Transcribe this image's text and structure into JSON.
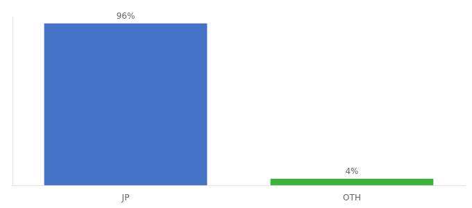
{
  "chart_data": {
    "type": "bar",
    "categories": [
      "JP",
      "OTH"
    ],
    "values": [
      96,
      4
    ],
    "value_labels": [
      "96%",
      "4%"
    ],
    "colors": [
      "#4472c4",
      "#3db33d"
    ],
    "ylim": [
      0,
      100
    ],
    "grid": false,
    "data_labels": true,
    "tick_labels": "x"
  }
}
